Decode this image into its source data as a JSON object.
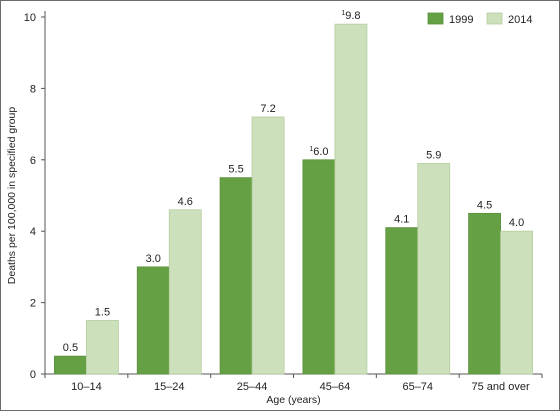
{
  "chart_data": {
    "type": "bar",
    "xlabel": "Age (years)",
    "ylabel": "Deaths per 100,000 in specified group",
    "ylim": [
      0,
      10
    ],
    "yticks": [
      0,
      2,
      4,
      6,
      8,
      10
    ],
    "categories": [
      "10–14",
      "15–24",
      "25–44",
      "45–64",
      "65–74",
      "75 and over"
    ],
    "series": [
      {
        "name": "1999",
        "color": "#66a044",
        "values": [
          0.5,
          3.0,
          5.5,
          6.0,
          4.1,
          4.5
        ],
        "labels": [
          "0.5",
          "3.0",
          "5.5",
          "6.0",
          "4.1",
          "4.5"
        ],
        "markers": [
          "",
          "",
          "",
          "1",
          "",
          ""
        ]
      },
      {
        "name": "2014",
        "color": "#cde0bc",
        "values": [
          1.5,
          4.6,
          7.2,
          9.8,
          5.9,
          4.0
        ],
        "labels": [
          "1.5",
          "4.6",
          "7.2",
          "9.8",
          "5.9",
          "4.0"
        ],
        "markers": [
          "",
          "",
          "",
          "1",
          "",
          ""
        ]
      }
    ],
    "legend_position": "top-right",
    "grid": false
  }
}
